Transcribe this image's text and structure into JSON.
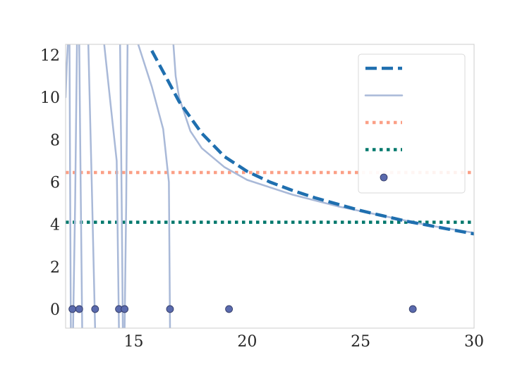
{
  "chart_data": {
    "type": "line",
    "title": "",
    "xlabel": "",
    "ylabel": "",
    "xlim": [
      12,
      30
    ],
    "ylim": [
      -0.9,
      12.5
    ],
    "x_ticks": [
      15,
      20,
      25,
      30
    ],
    "y_ticks": [
      0,
      2,
      4,
      6,
      8,
      10,
      12
    ],
    "grid": false,
    "legend": {
      "placement": "top-right",
      "entries": [
        {
          "kind": "line",
          "style": "dashed",
          "color": "#1f6faf"
        },
        {
          "kind": "line",
          "style": "solid",
          "color": "#a9b9d8"
        },
        {
          "kind": "line",
          "style": "dotted",
          "color": "#fb9f86"
        },
        {
          "kind": "line",
          "style": "dotted",
          "color": "#00786c"
        },
        {
          "kind": "marker",
          "color": "#5a6aad"
        }
      ]
    },
    "series": [
      {
        "style": "dashed",
        "color": "#1f6faf",
        "points": [
          [
            15.8,
            12.2
          ],
          [
            16.5,
            10.8
          ],
          [
            17.0,
            9.8
          ],
          [
            18.0,
            8.3
          ],
          [
            19.0,
            7.2
          ],
          [
            20.0,
            6.5
          ],
          [
            21.0,
            6.0
          ],
          [
            22.0,
            5.6
          ],
          [
            23.0,
            5.25
          ],
          [
            24.0,
            4.95
          ],
          [
            25.0,
            4.65
          ],
          [
            26.0,
            4.4
          ],
          [
            27.0,
            4.15
          ],
          [
            28.0,
            3.95
          ],
          [
            29.0,
            3.75
          ],
          [
            30.0,
            3.55
          ]
        ]
      },
      {
        "style": "solid",
        "color": "#a9b9d8",
        "segments": [
          [
            [
              12.0,
              10.0
            ],
            [
              12.05,
              11.5
            ],
            [
              12.1,
              12.5
            ]
          ],
          [
            [
              12.17,
              12.5
            ],
            [
              12.2,
              6.0
            ],
            [
              12.23,
              -0.9
            ]
          ],
          [
            [
              12.33,
              -0.9
            ],
            [
              12.42,
              5.0
            ],
            [
              12.5,
              12.5
            ]
          ],
          [
            [
              12.6,
              12.5
            ],
            [
              12.67,
              5.0
            ],
            [
              12.73,
              -0.9
            ]
          ],
          [
            [
              13.0,
              12.5
            ],
            [
              13.15,
              6.0
            ],
            [
              13.3,
              -0.9
            ]
          ],
          [
            [
              13.7,
              12.5
            ],
            [
              14.0,
              9.5
            ],
            [
              14.25,
              7.0
            ],
            [
              14.35,
              -0.9
            ]
          ],
          [
            [
              14.4,
              12.5
            ],
            [
              14.47,
              5.0
            ],
            [
              14.52,
              -0.9
            ]
          ],
          [
            [
              14.6,
              -0.9
            ],
            [
              14.67,
              5.0
            ],
            [
              14.73,
              12.5
            ]
          ],
          [
            [
              15.2,
              12.5
            ],
            [
              15.8,
              10.5
            ],
            [
              16.3,
              8.5
            ],
            [
              16.55,
              6.0
            ],
            [
              16.6,
              -0.9
            ]
          ],
          [
            [
              16.75,
              12.5
            ],
            [
              16.85,
              11.0
            ],
            [
              17.0,
              10.0
            ],
            [
              17.5,
              8.4
            ],
            [
              18.0,
              7.6
            ],
            [
              19.0,
              6.7
            ],
            [
              20.0,
              6.1
            ],
            [
              22.0,
              5.4
            ],
            [
              24.0,
              4.85
            ],
            [
              26.0,
              4.4
            ],
            [
              28.0,
              3.95
            ],
            [
              30.0,
              3.6
            ]
          ]
        ]
      },
      {
        "style": "dotted",
        "color": "#fb9f86",
        "points": [
          [
            12.0,
            6.45
          ],
          [
            30.0,
            6.45
          ]
        ]
      },
      {
        "style": "dotted",
        "color": "#00786c",
        "points": [
          [
            12.0,
            4.1
          ],
          [
            30.0,
            4.1
          ]
        ]
      },
      {
        "style": "markers",
        "color": "#5a6aad",
        "points": [
          [
            12.3,
            0
          ],
          [
            12.6,
            0
          ],
          [
            13.3,
            0
          ],
          [
            14.35,
            0
          ],
          [
            14.6,
            0
          ],
          [
            16.6,
            0
          ],
          [
            19.2,
            0
          ],
          [
            27.3,
            0
          ]
        ]
      }
    ]
  }
}
